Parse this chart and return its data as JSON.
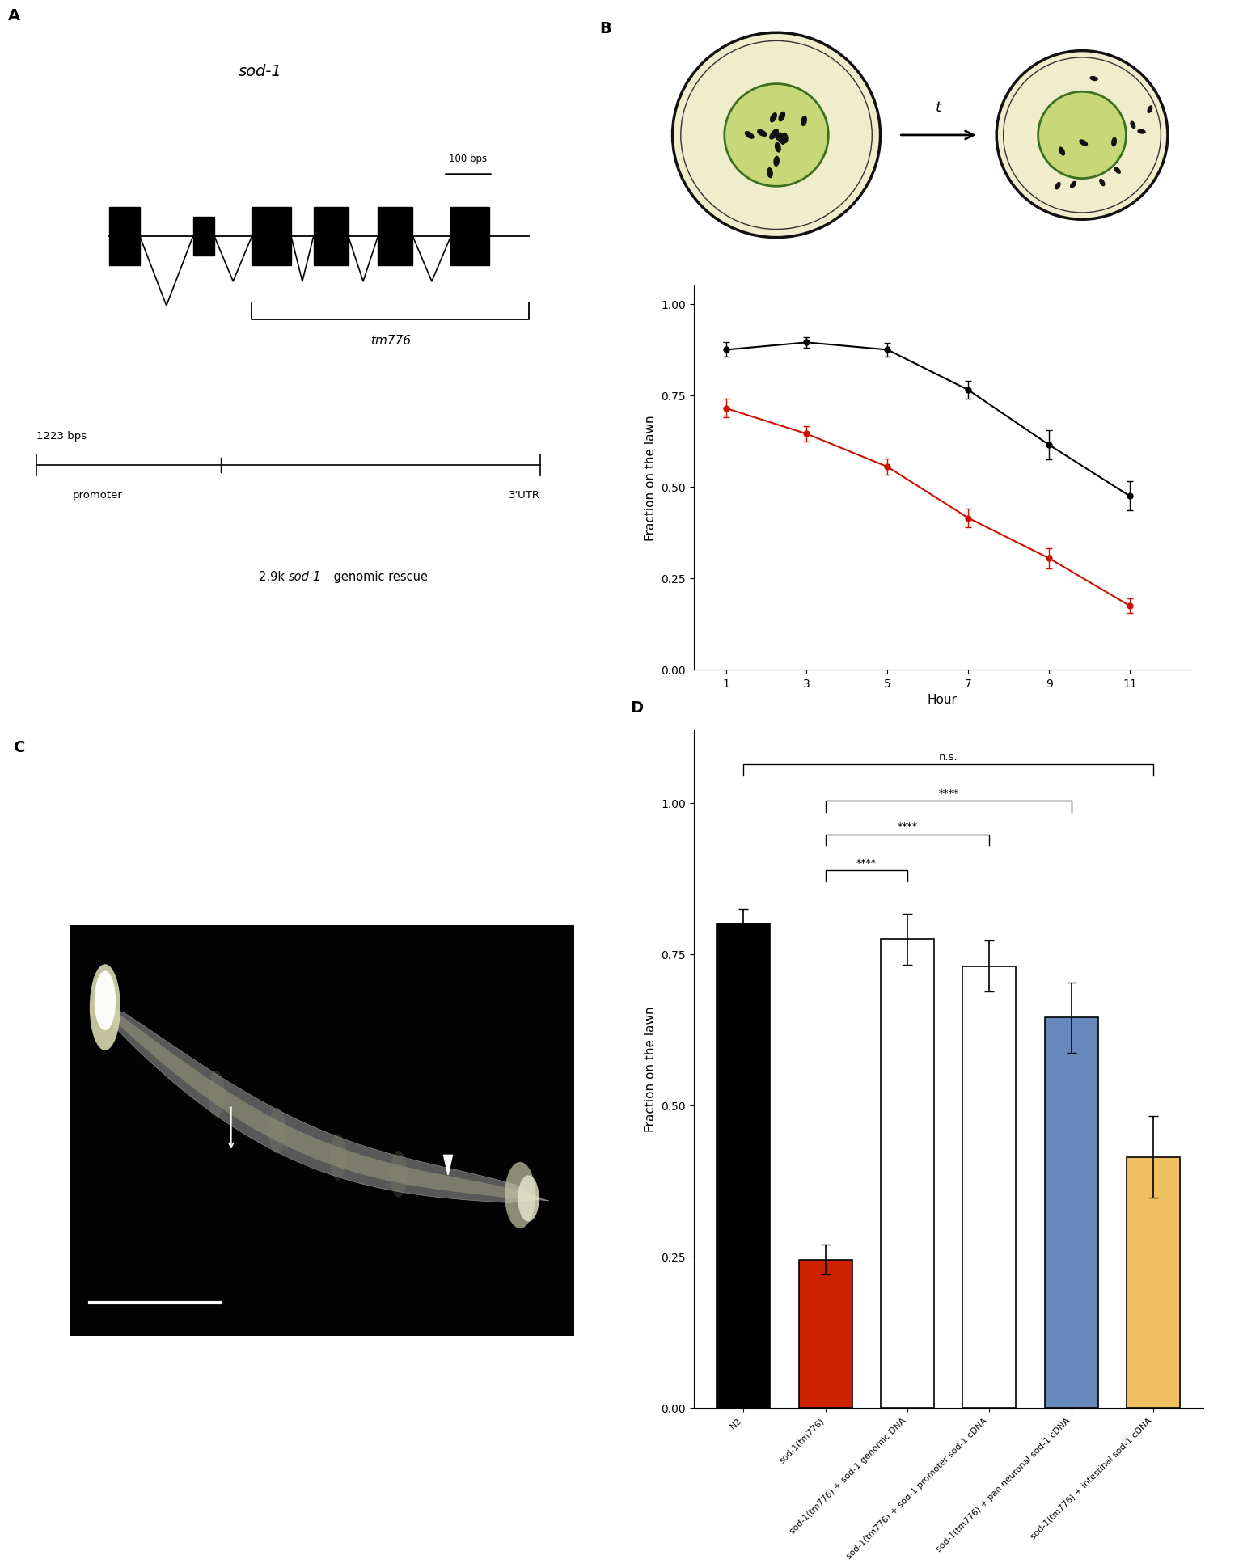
{
  "panel_label_fontsize": 14,
  "panel_label_fontweight": "bold",
  "line_chart": {
    "xlabel": "Hour",
    "ylabel": "Fraction on the lawn",
    "ylim": [
      0.0,
      1.05
    ],
    "yticks": [
      0.0,
      0.25,
      0.5,
      0.75,
      1.0
    ],
    "ytick_labels": [
      "0.00",
      "0.25",
      "0.50",
      "0.75",
      "1.00"
    ],
    "xticks": [
      1,
      3,
      5,
      7,
      9,
      11
    ],
    "black_series_x": [
      1,
      3,
      5,
      7,
      9,
      11
    ],
    "black_series_y": [
      0.875,
      0.895,
      0.875,
      0.765,
      0.615,
      0.475
    ],
    "black_series_yerr": [
      0.02,
      0.015,
      0.018,
      0.025,
      0.04,
      0.04
    ],
    "red_series_x": [
      1,
      3,
      5,
      7,
      9,
      11
    ],
    "red_series_y": [
      0.715,
      0.645,
      0.555,
      0.415,
      0.305,
      0.175
    ],
    "red_series_yerr": [
      0.025,
      0.022,
      0.022,
      0.025,
      0.028,
      0.02
    ],
    "black_color": "#000000",
    "red_color": "#cc1100"
  },
  "bar_chart": {
    "ylabel": "Fraction on the lawn",
    "ylim": [
      0.0,
      1.12
    ],
    "yticks": [
      0.0,
      0.25,
      0.5,
      0.75,
      1.0
    ],
    "ytick_labels": [
      "0.00",
      "0.25",
      "0.50",
      "0.75",
      "1.00"
    ],
    "values": [
      0.8,
      0.245,
      0.775,
      0.73,
      0.645,
      0.415
    ],
    "yerr": [
      0.025,
      0.025,
      0.042,
      0.042,
      0.058,
      0.068
    ],
    "colors": [
      "#000000",
      "#cc2200",
      "#ffffff",
      "#ffffff",
      "#6688bb",
      "#f0c060"
    ],
    "tick_labels": [
      "N2",
      "sod-1(tm776)",
      "sod-1(tm776) + sod-1 genomic DNA",
      "sod-1(tm776) + sod-1 promoter sod-1 cDNA",
      "sod-1(tm776) + pan neuronal sod-1 cDNA",
      "sod-1(tm776) + intestinal sod-1 cDNA"
    ]
  },
  "background_color": "#ffffff"
}
